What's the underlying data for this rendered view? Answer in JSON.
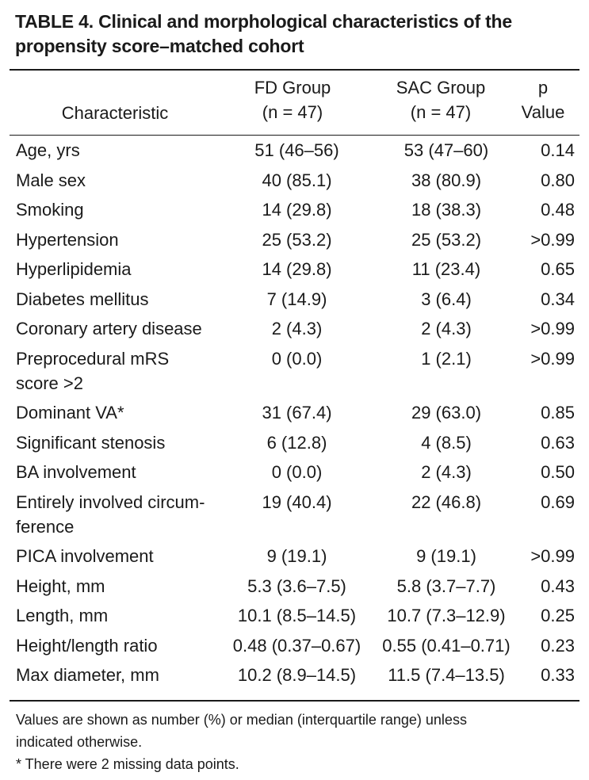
{
  "table": {
    "title_line1": "TABLE 4. Clinical and morphological characteristics of the",
    "title_line2": "propensity score–matched cohort",
    "headers": {
      "characteristic": "Characteristic",
      "fd_line1": "FD Group",
      "fd_line2": "(n = 47)",
      "sac_line1": "SAC Group",
      "sac_line2": "(n = 47)",
      "p_line1": "p",
      "p_line2": "Value"
    },
    "rows": [
      {
        "characteristic": "Age, yrs",
        "fd": "51 (46–56)",
        "sac": "53 (47–60)",
        "p": "0.14"
      },
      {
        "characteristic": "Male sex",
        "fd": "40 (85.1)",
        "sac": "38 (80.9)",
        "p": "0.80"
      },
      {
        "characteristic": "Smoking",
        "fd": "14 (29.8)",
        "sac": "18 (38.3)",
        "p": "0.48"
      },
      {
        "characteristic": "Hypertension",
        "fd": "25 (53.2)",
        "sac": "25 (53.2)",
        "p": ">0.99"
      },
      {
        "characteristic": "Hyperlipidemia",
        "fd": "14 (29.8)",
        "sac": "11 (23.4)",
        "p": "0.65"
      },
      {
        "characteristic": "Diabetes mellitus",
        "fd": "7 (14.9)",
        "sac": "3 (6.4)",
        "p": "0.34"
      },
      {
        "characteristic": "Coronary artery disease",
        "fd": "2 (4.3)",
        "sac": "2 (4.3)",
        "p": ">0.99"
      },
      {
        "characteristic_line1": "Preprocedural mRS",
        "characteristic_line2": "score >2",
        "fd": "0 (0.0)",
        "sac": "1 (2.1)",
        "p": ">0.99"
      },
      {
        "characteristic": "Dominant VA*",
        "fd": "31 (67.4)",
        "sac": "29 (63.0)",
        "p": "0.85"
      },
      {
        "characteristic": "Significant stenosis",
        "fd": "6 (12.8)",
        "sac": "4 (8.5)",
        "p": "0.63"
      },
      {
        "characteristic": "BA involvement",
        "fd": "0 (0.0)",
        "sac": "2 (4.3)",
        "p": "0.50"
      },
      {
        "characteristic_line1": "Entirely involved circum-",
        "characteristic_line2": "ference",
        "fd": "19 (40.4)",
        "sac": "22 (46.8)",
        "p": "0.69"
      },
      {
        "characteristic": "PICA involvement",
        "fd": "9 (19.1)",
        "sac": "9 (19.1)",
        "p": ">0.99"
      },
      {
        "characteristic": "Height, mm",
        "fd": "5.3 (3.6–7.5)",
        "sac": "5.8 (3.7–7.7)",
        "p": "0.43"
      },
      {
        "characteristic": "Length, mm",
        "fd": "10.1 (8.5–14.5)",
        "sac": "10.7 (7.3–12.9)",
        "p": "0.25"
      },
      {
        "characteristic": "Height/length ratio",
        "fd": "0.48 (0.37–0.67)",
        "sac": "0.55 (0.41–0.71)",
        "p": "0.23"
      },
      {
        "characteristic": "Max diameter, mm",
        "fd": "10.2 (8.9–14.5)",
        "sac": "11.5 (7.4–13.5)",
        "p": "0.33"
      }
    ],
    "footnote_line1": "Values are shown as number (%) or median (interquartile range) unless",
    "footnote_line2": "indicated otherwise.",
    "footnote_line3": "* There were 2 missing data points."
  }
}
